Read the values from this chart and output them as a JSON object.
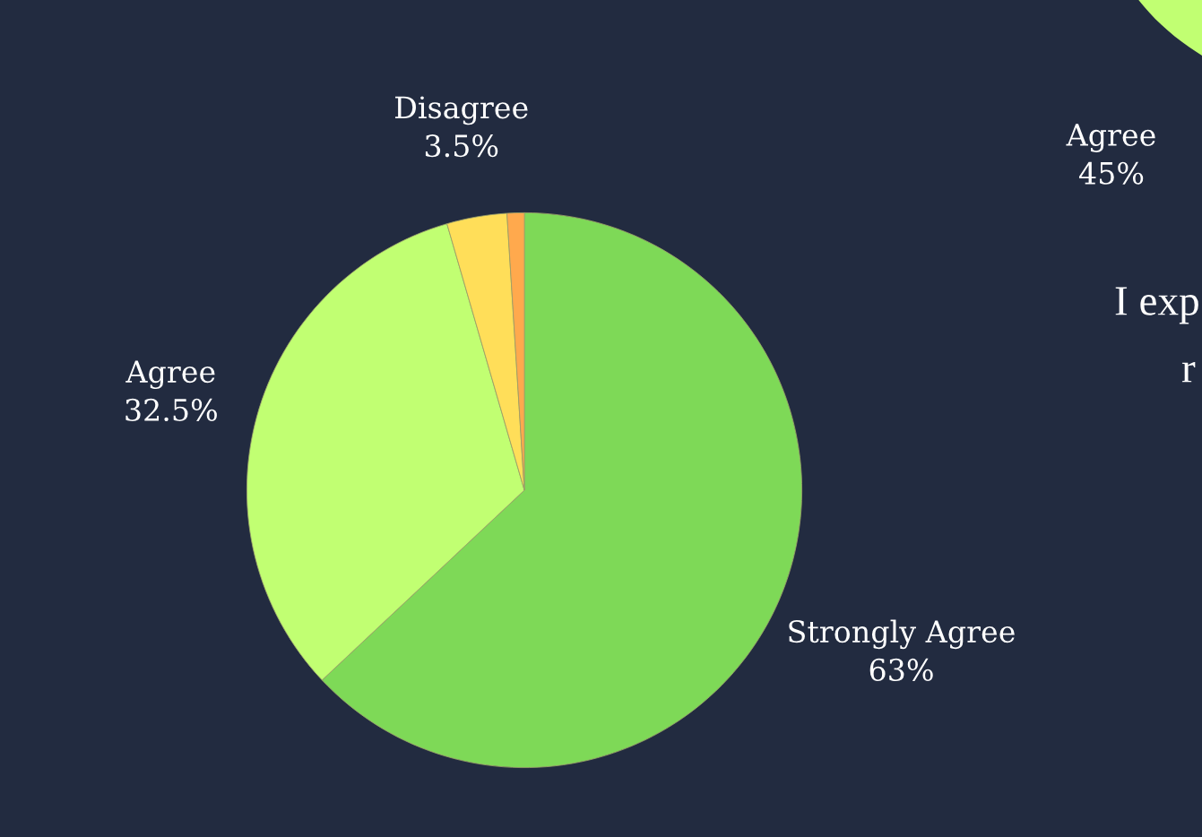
{
  "chart_data": {
    "type": "pie",
    "categories": [
      "Strongly Agree",
      "Agree",
      "Disagree",
      null
    ],
    "values": [
      63,
      32.5,
      3.5,
      1
    ],
    "colors": [
      "#7ed957",
      "#c1ff72",
      "#ffde59",
      "#ffa94d"
    ],
    "value_labels": [
      "63%",
      "32.5%",
      "3.5%",
      null
    ],
    "annotations": [
      "Agree\n45%",
      "I exp",
      "r"
    ]
  }
}
